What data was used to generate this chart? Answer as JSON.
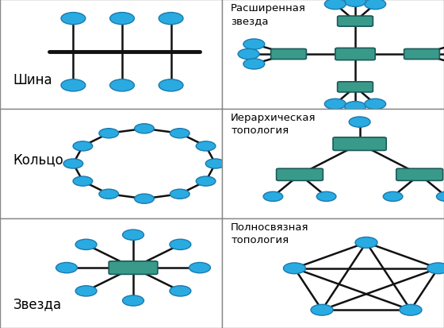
{
  "node_color": "#29abe2",
  "node_edge_color": "#1a7aad",
  "hub_color": "#3a9a8a",
  "hub_edge_color": "#1a5a5a",
  "line_color": "#111111",
  "line_width": 1.8,
  "border_color": "#888888",
  "bg_color": "#ffffff",
  "label_color": "#000000",
  "labels": {
    "bus": "Шина",
    "ring": "Кольцо",
    "star": "Звезда",
    "ext_star": "Расширенная\nзвезда",
    "hier": "Иерархическая\nтопология",
    "mesh": "Полносвязная\nтопология"
  }
}
